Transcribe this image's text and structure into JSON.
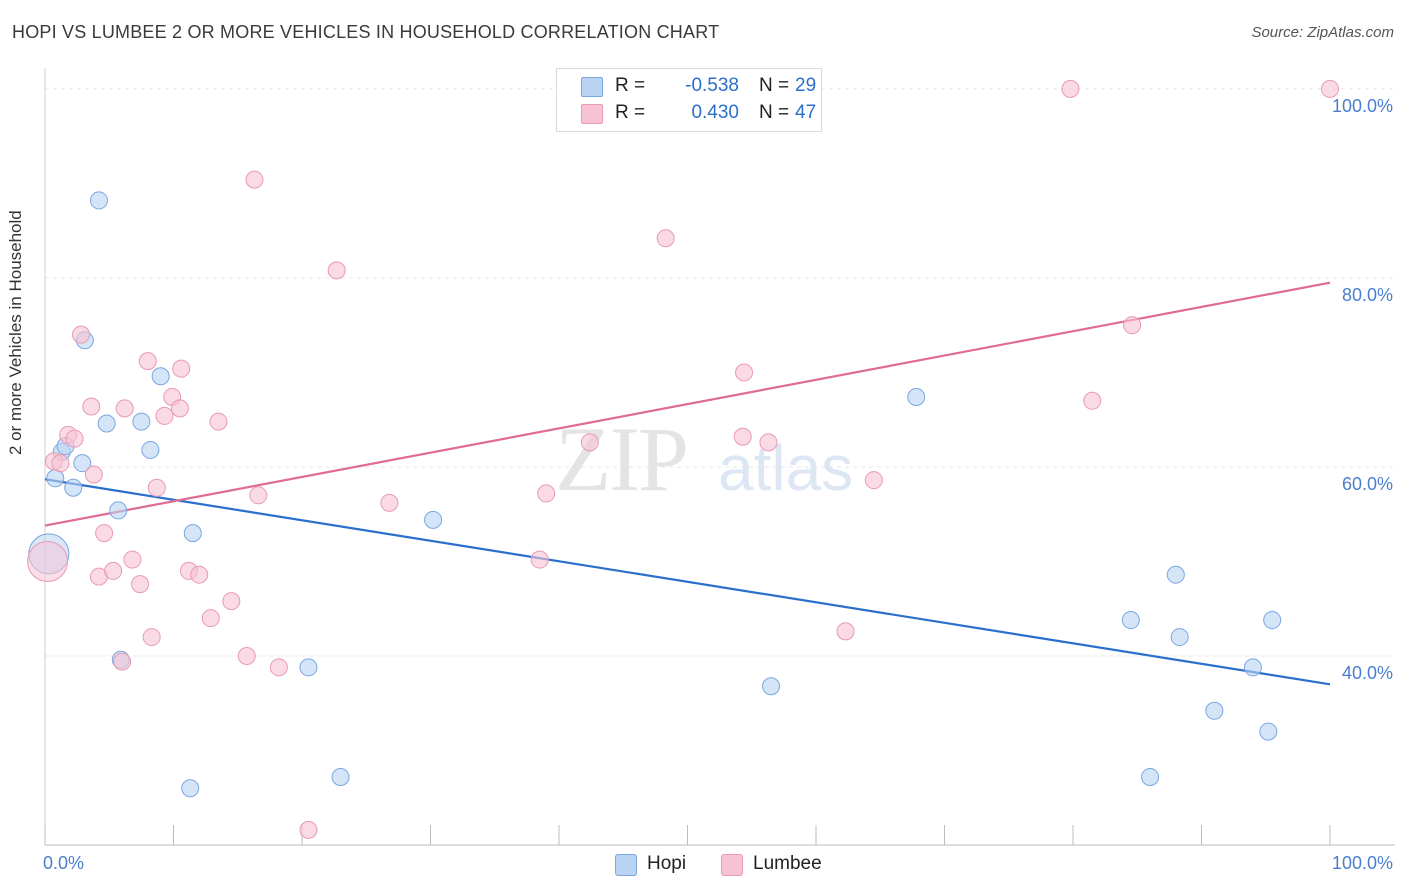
{
  "title": "HOPI VS LUMBEE 2 OR MORE VEHICLES IN HOUSEHOLD CORRELATION CHART",
  "source": "Source: ZipAtlas.com",
  "watermark": {
    "zip": "ZIP",
    "atlas": "atlas"
  },
  "legend": {
    "hopi": {
      "r_label": "R =",
      "r_value": "-0.538",
      "n_label": "N =",
      "n_value": "29"
    },
    "lumbee": {
      "r_label": "R =",
      "r_value": "0.430",
      "n_label": "N =",
      "n_value": "47"
    }
  },
  "bottom_legend": {
    "hopi": "Hopi",
    "lumbee": "Lumbee"
  },
  "colors": {
    "hopi_fill": "#b9d3f3",
    "hopi_stroke": "#7aa6e0",
    "hopi_line": "#2a6fcc",
    "lumbee_fill": "#f7c3d3",
    "lumbee_stroke": "#e89ab4",
    "lumbee_line": "#e06b93",
    "axis_label": "#4a7fcf",
    "grid": "#e6e6e6"
  },
  "chart_data": {
    "type": "scatter",
    "title": "HOPI VS LUMBEE 2 OR MORE VEHICLES IN HOUSEHOLD CORRELATION CHART",
    "xlabel": "",
    "ylabel": "2 or more Vehicles in Household",
    "xlim": [
      0,
      100
    ],
    "ylim": [
      20,
      102
    ],
    "x_tick_labels": [
      "0.0%",
      "100.0%"
    ],
    "y_ticks": [
      40,
      60,
      80,
      100
    ],
    "y_tick_labels": [
      "40.0%",
      "60.0%",
      "80.0%",
      "100.0%"
    ],
    "series": [
      {
        "name": "Hopi",
        "points": [
          [
            0.3,
            50.8
          ],
          [
            0.8,
            58.8
          ],
          [
            1.3,
            61.6
          ],
          [
            1.6,
            62.2
          ],
          [
            2.2,
            57.8
          ],
          [
            2.9,
            60.4
          ],
          [
            3.1,
            73.4
          ],
          [
            4.2,
            88.2
          ],
          [
            4.8,
            64.6
          ],
          [
            5.7,
            55.4
          ],
          [
            5.9,
            39.6
          ],
          [
            7.5,
            64.8
          ],
          [
            8.2,
            61.8
          ],
          [
            9.0,
            69.6
          ],
          [
            11.5,
            53.0
          ],
          [
            11.3,
            26.0
          ],
          [
            20.5,
            38.8
          ],
          [
            23.0,
            27.2
          ],
          [
            30.2,
            54.4
          ],
          [
            56.5,
            36.8
          ],
          [
            67.8,
            67.4
          ],
          [
            84.5,
            43.8
          ],
          [
            86.0,
            27.2
          ],
          [
            88.0,
            48.6
          ],
          [
            88.3,
            42.0
          ],
          [
            91.0,
            34.2
          ],
          [
            94.0,
            38.8
          ],
          [
            95.2,
            32.0
          ],
          [
            95.5,
            43.8
          ]
        ],
        "trend": {
          "x": [
            0,
            100
          ],
          "y": [
            58.7,
            37.0
          ]
        }
      },
      {
        "name": "Lumbee",
        "points": [
          [
            0.2,
            50.0
          ],
          [
            0.7,
            60.6
          ],
          [
            1.2,
            60.4
          ],
          [
            1.8,
            63.4
          ],
          [
            2.3,
            63.0
          ],
          [
            2.8,
            74.0
          ],
          [
            3.6,
            66.4
          ],
          [
            3.8,
            59.2
          ],
          [
            4.2,
            48.4
          ],
          [
            4.6,
            53.0
          ],
          [
            5.3,
            49.0
          ],
          [
            6.0,
            39.4
          ],
          [
            6.2,
            66.2
          ],
          [
            6.8,
            50.2
          ],
          [
            7.4,
            47.6
          ],
          [
            8.0,
            71.2
          ],
          [
            8.3,
            42.0
          ],
          [
            8.7,
            57.8
          ],
          [
            9.3,
            65.4
          ],
          [
            9.9,
            67.4
          ],
          [
            10.5,
            66.2
          ],
          [
            10.6,
            70.4
          ],
          [
            11.2,
            49.0
          ],
          [
            12.0,
            48.6
          ],
          [
            12.9,
            44.0
          ],
          [
            13.5,
            64.8
          ],
          [
            14.5,
            45.8
          ],
          [
            15.7,
            40.0
          ],
          [
            16.3,
            90.4
          ],
          [
            16.6,
            57.0
          ],
          [
            18.2,
            38.8
          ],
          [
            20.5,
            21.6
          ],
          [
            22.7,
            80.8
          ],
          [
            26.8,
            56.2
          ],
          [
            38.5,
            50.2
          ],
          [
            39.0,
            57.2
          ],
          [
            42.4,
            62.6
          ],
          [
            48.3,
            84.2
          ],
          [
            54.3,
            63.2
          ],
          [
            54.4,
            70.0
          ],
          [
            56.3,
            62.6
          ],
          [
            62.3,
            42.6
          ],
          [
            64.5,
            58.6
          ],
          [
            79.8,
            100.0
          ],
          [
            81.5,
            67.0
          ],
          [
            84.6,
            75.0
          ],
          [
            100.0,
            100.0
          ]
        ],
        "trend": {
          "x": [
            0,
            100
          ],
          "y": [
            53.8,
            79.5
          ]
        }
      }
    ],
    "legend_position": "top-center",
    "grid": true
  }
}
